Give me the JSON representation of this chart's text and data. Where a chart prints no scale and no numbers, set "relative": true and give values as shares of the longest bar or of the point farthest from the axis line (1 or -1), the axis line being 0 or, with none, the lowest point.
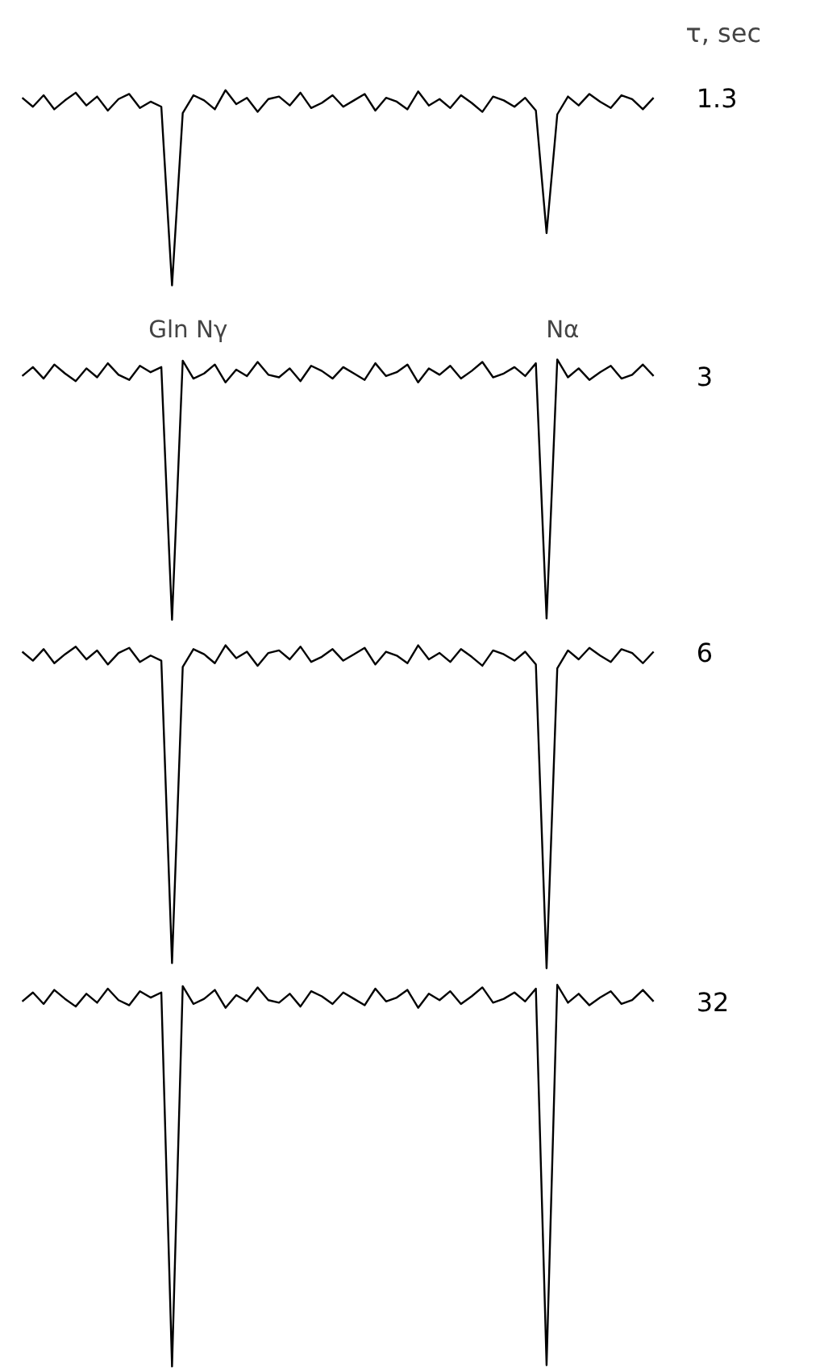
{
  "chart_data": {
    "type": "line",
    "relative": true,
    "legend": false,
    "grid": false,
    "legend_title": "τ, sec",
    "annotations": [
      "Gln Nγ",
      "Nα"
    ],
    "categories": [
      null,
      null,
      null,
      null,
      null,
      null,
      null,
      null,
      null,
      null,
      null,
      null,
      null,
      null,
      null,
      null,
      null,
      null,
      null,
      null,
      null,
      null,
      null,
      null,
      null,
      null,
      null,
      null,
      null,
      null,
      null,
      null,
      null,
      null,
      null,
      null,
      null,
      null,
      null,
      null,
      null,
      null,
      null,
      null,
      null,
      null,
      null,
      null,
      null,
      null,
      null,
      null,
      null,
      null,
      null,
      null,
      null,
      null,
      null,
      null
    ],
    "series": [
      {
        "name": "1.3",
        "color": "#000000",
        "values": [
          0.994,
          0.987,
          0.996,
          0.985,
          0.992,
          0.998,
          0.988,
          0.995,
          0.984,
          0.993,
          0.997,
          0.986,
          0.991,
          0.987,
          0.847,
          0.982,
          0.996,
          0.992,
          0.985,
          1.0,
          0.989,
          0.994,
          0.983,
          0.993,
          0.995,
          0.988,
          0.998,
          0.986,
          0.99,
          0.996,
          0.987,
          0.992,
          0.997,
          0.984,
          0.994,
          0.991,
          0.985,
          0.999,
          0.988,
          0.993,
          0.986,
          0.996,
          0.99,
          0.983,
          0.995,
          0.992,
          0.987,
          0.994,
          0.984,
          0.888,
          0.981,
          0.995,
          0.988,
          0.997,
          0.991,
          0.986,
          0.996,
          0.993,
          0.985,
          0.994
        ]
      },
      {
        "name": "3",
        "color": "#000000",
        "values": [
          0.776,
          0.783,
          0.774,
          0.785,
          0.778,
          0.772,
          0.782,
          0.775,
          0.786,
          0.777,
          0.773,
          0.784,
          0.779,
          0.783,
          0.585,
          0.788,
          0.774,
          0.778,
          0.785,
          0.771,
          0.781,
          0.776,
          0.787,
          0.777,
          0.775,
          0.782,
          0.772,
          0.784,
          0.78,
          0.774,
          0.783,
          0.778,
          0.773,
          0.786,
          0.776,
          0.779,
          0.785,
          0.771,
          0.782,
          0.777,
          0.784,
          0.774,
          0.78,
          0.787,
          0.775,
          0.778,
          0.783,
          0.776,
          0.786,
          0.586,
          0.789,
          0.775,
          0.782,
          0.773,
          0.779,
          0.784,
          0.774,
          0.777,
          0.785,
          0.776
        ]
      },
      {
        "name": "6",
        "color": "#000000",
        "values": [
          0.56,
          0.553,
          0.562,
          0.551,
          0.558,
          0.564,
          0.554,
          0.561,
          0.55,
          0.559,
          0.563,
          0.552,
          0.557,
          0.553,
          0.316,
          0.548,
          0.562,
          0.558,
          0.551,
          0.565,
          0.555,
          0.56,
          0.549,
          0.559,
          0.561,
          0.554,
          0.564,
          0.552,
          0.556,
          0.562,
          0.553,
          0.558,
          0.563,
          0.55,
          0.56,
          0.557,
          0.551,
          0.565,
          0.554,
          0.559,
          0.552,
          0.562,
          0.556,
          0.549,
          0.561,
          0.558,
          0.553,
          0.56,
          0.55,
          0.312,
          0.547,
          0.561,
          0.554,
          0.563,
          0.557,
          0.552,
          0.562,
          0.559,
          0.551,
          0.56
        ]
      },
      {
        "name": "32",
        "color": "#000000",
        "values": [
          0.286,
          0.293,
          0.284,
          0.295,
          0.288,
          0.282,
          0.292,
          0.285,
          0.296,
          0.287,
          0.283,
          0.294,
          0.289,
          0.293,
          0.0,
          0.298,
          0.284,
          0.288,
          0.295,
          0.281,
          0.291,
          0.286,
          0.297,
          0.287,
          0.285,
          0.292,
          0.282,
          0.294,
          0.29,
          0.284,
          0.293,
          0.288,
          0.283,
          0.296,
          0.286,
          0.289,
          0.295,
          0.281,
          0.292,
          0.287,
          0.294,
          0.284,
          0.29,
          0.297,
          0.285,
          0.288,
          0.293,
          0.286,
          0.296,
          0.001,
          0.299,
          0.285,
          0.292,
          0.283,
          0.289,
          0.294,
          0.284,
          0.287,
          0.295,
          0.286
        ]
      }
    ]
  }
}
